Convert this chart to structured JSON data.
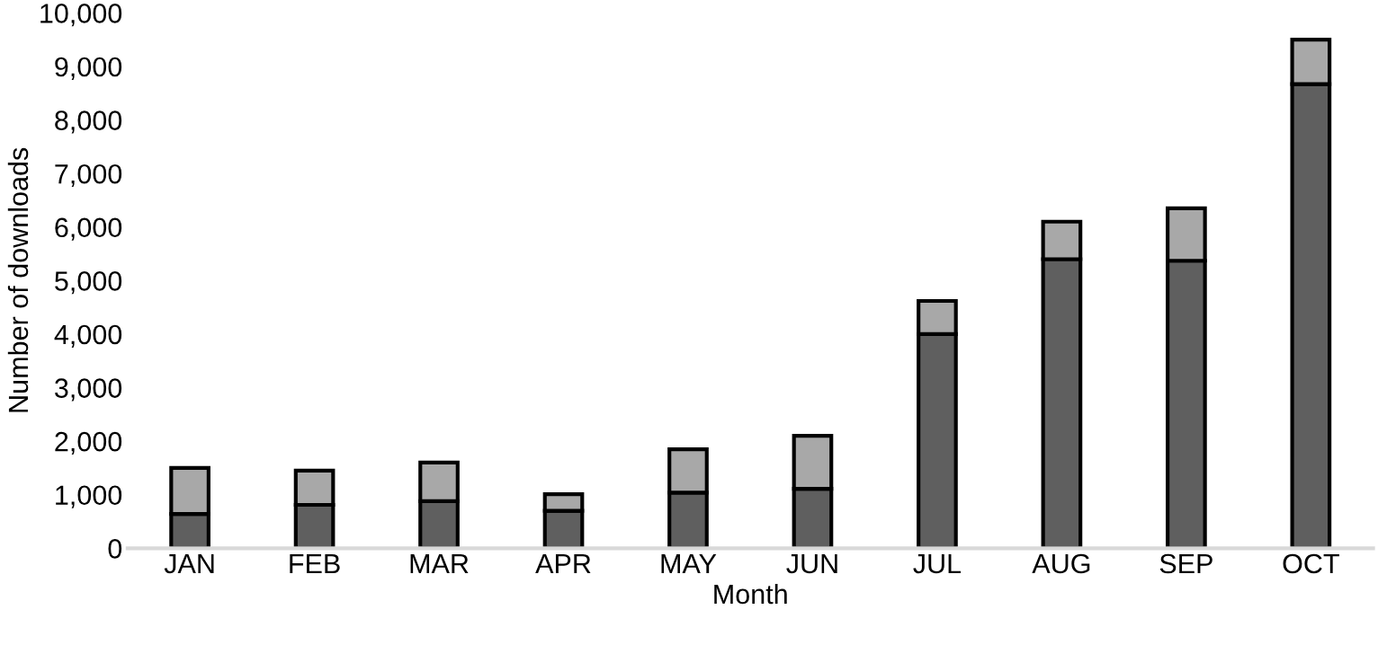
{
  "chart_data": {
    "type": "bar",
    "stacked": true,
    "xlabel": "Month",
    "ylabel": "Number of downloads",
    "categories": [
      "JAN",
      "FEB",
      "MAR",
      "APR",
      "MAY",
      "JUN",
      "JUL",
      "AUG",
      "SEP",
      "OCT"
    ],
    "series": [
      {
        "color": "#5f5f5f",
        "values": [
          640,
          810,
          880,
          700,
          1040,
          1110,
          4000,
          5400,
          5370,
          8670
        ]
      },
      {
        "color": "#a8a8a8",
        "values": [
          860,
          640,
          720,
          310,
          810,
          990,
          620,
          700,
          980,
          830
        ]
      }
    ],
    "ylim": [
      0,
      10000
    ],
    "yticks": [
      {
        "value": 0,
        "label": "0"
      },
      {
        "value": 1000,
        "label": "1,000"
      },
      {
        "value": 2000,
        "label": "2,000"
      },
      {
        "value": 3000,
        "label": "3,000"
      },
      {
        "value": 4000,
        "label": "4,000"
      },
      {
        "value": 5000,
        "label": "5,000"
      },
      {
        "value": 6000,
        "label": "6,000"
      },
      {
        "value": 7000,
        "label": "7,000"
      },
      {
        "value": 8000,
        "label": "8,000"
      },
      {
        "value": 9000,
        "label": "9,000"
      },
      {
        "value": 10000,
        "label": "10,000"
      }
    ],
    "grid": false,
    "legend": false
  }
}
